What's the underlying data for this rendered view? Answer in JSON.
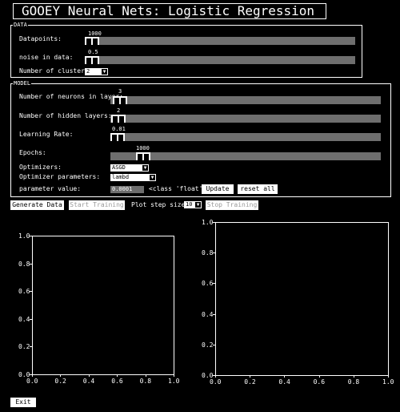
{
  "title": "GOOEY Neural Nets: Logistic Regression",
  "data_section": {
    "legend": "DATA",
    "datapoints": {
      "label": "Datapoints:",
      "value": "1000",
      "fraction": 0.0
    },
    "noise": {
      "label": "noise in data:",
      "value": "0.5",
      "fraction": 0.0
    },
    "clusters": {
      "label": "Number of clusters:",
      "value": "2"
    }
  },
  "model_section": {
    "legend": "MODEL",
    "neurons": {
      "label": "Number of neurons in layer:",
      "value": "3",
      "fraction": 0.0
    },
    "hidden_layers": {
      "label": "Number of hidden layers:",
      "value": "2",
      "fraction": 0.0
    },
    "learning_rate": {
      "label": "Learning Rate:",
      "value": "0.01",
      "fraction": 0.0
    },
    "epochs": {
      "label": "Epochs:",
      "value": "1000",
      "fraction": 0.1
    },
    "optimizer": {
      "label": "Optimizers:",
      "value": "ASGD"
    },
    "optimizer_params": {
      "label": "Optimizer parameters:",
      "value": "lambd"
    },
    "param_value": {
      "label": "parameter value:",
      "value": "0.0001",
      "type_text": "<class 'float'>"
    },
    "update_label": "Update",
    "reset_label": "reset all"
  },
  "actions": {
    "generate": "Generate Data",
    "start": "Start Training",
    "plot_step_label": "Plot step size:",
    "plot_step_value": "10",
    "stop": "Stop Training"
  },
  "plots": {
    "left": {
      "y_ticks": [
        "1.0",
        "0.8",
        "0.6",
        "0.4",
        "0.2",
        "0.0"
      ],
      "x_ticks": [
        "0.0",
        "0.2",
        "0.4",
        "0.6",
        "0.8",
        "1.0"
      ]
    },
    "right": {
      "y_ticks": [
        "1.0",
        "0.8",
        "0.6",
        "0.4",
        "0.2",
        "0.0"
      ],
      "x_ticks": [
        "0.0",
        "0.2",
        "0.4",
        "0.6",
        "0.8",
        "1.0"
      ]
    }
  },
  "exit_label": "Exit",
  "colors": {
    "background": "#000000",
    "foreground": "#ffffff",
    "track": "#6e6e6e"
  },
  "icons": {
    "dropdown": "chevron-down-icon"
  }
}
